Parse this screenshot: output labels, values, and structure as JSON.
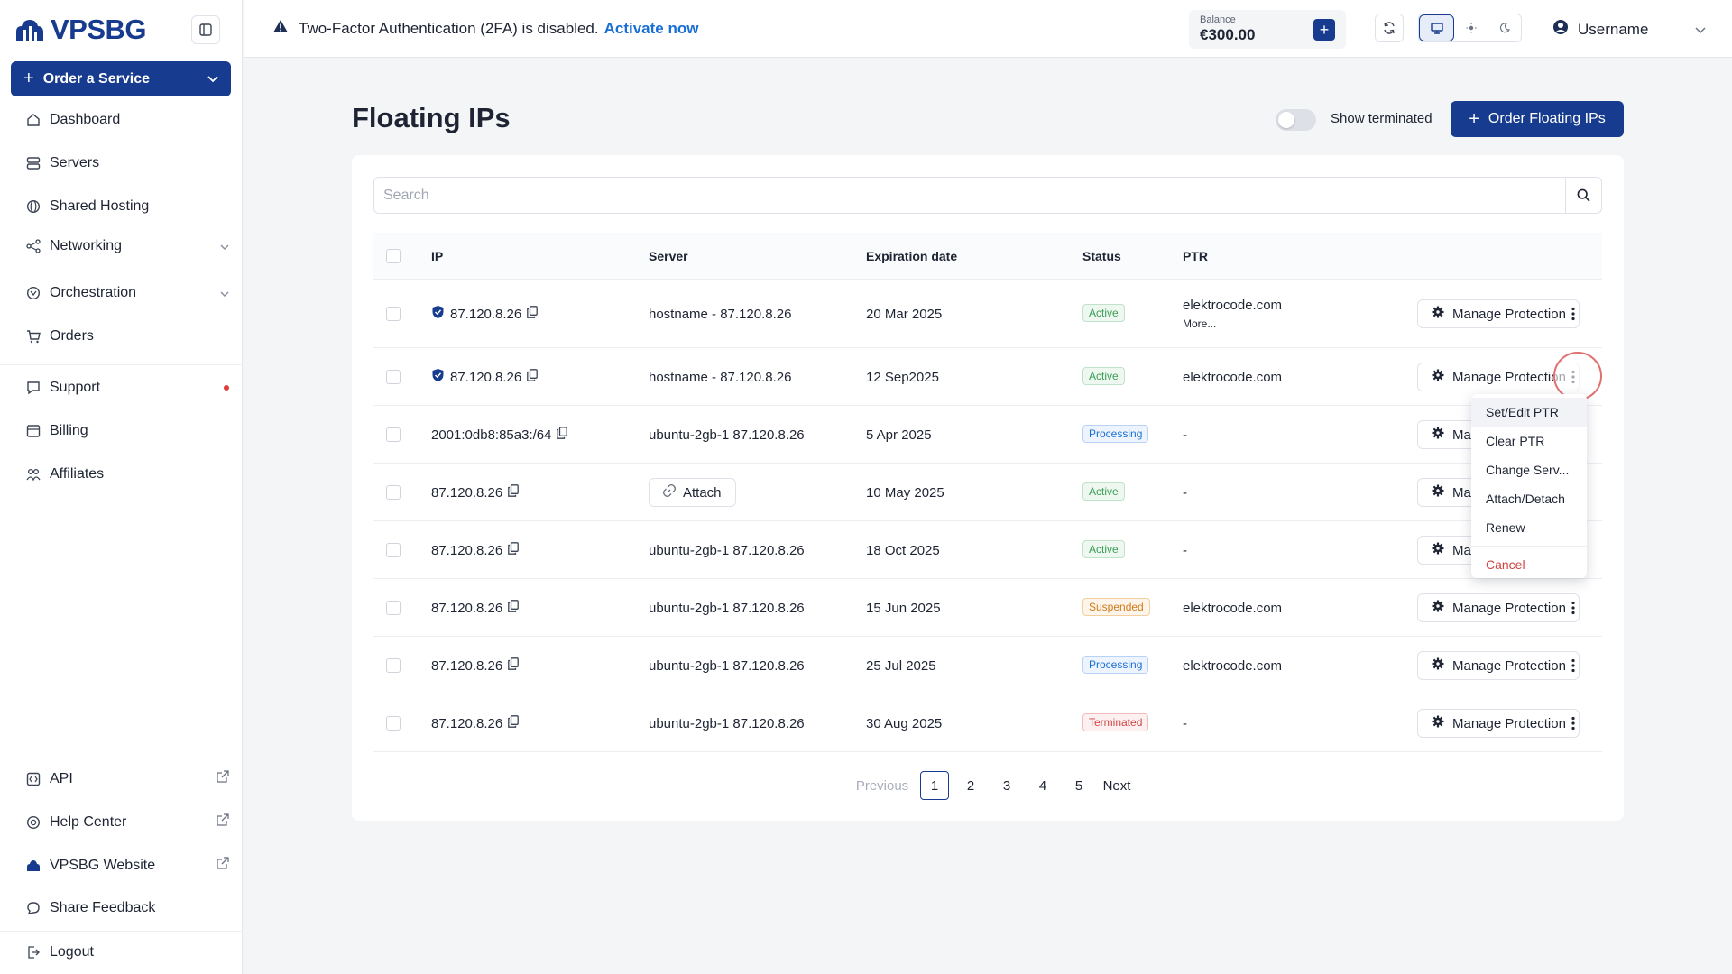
{
  "brand": {
    "name": "VPSBG"
  },
  "sidebar": {
    "order_button": "Order a Service",
    "items": [
      {
        "label": "Dashboard",
        "icon": "home-icon"
      },
      {
        "label": "Servers",
        "icon": "server-icon"
      },
      {
        "label": "Shared Hosting",
        "icon": "globe-icon"
      },
      {
        "label": "Networking",
        "icon": "network-icon",
        "expandable": true
      },
      {
        "label": "Orchestration",
        "icon": "orchestration-icon",
        "expandable": true
      },
      {
        "label": "Orders",
        "icon": "cart-icon"
      },
      {
        "label": "Support",
        "icon": "chat-icon",
        "notification": true
      },
      {
        "label": "Billing",
        "icon": "billing-icon"
      },
      {
        "label": "Affiliates",
        "icon": "affiliates-icon"
      }
    ],
    "bottom_items": [
      {
        "label": "API",
        "icon": "api-icon",
        "external": true
      },
      {
        "label": "Help Center",
        "icon": "help-icon",
        "external": true
      },
      {
        "label": "VPSBG Website",
        "icon": "cloud-icon",
        "external": true
      },
      {
        "label": "Share Feedback",
        "icon": "feedback-icon"
      },
      {
        "label": "Logout",
        "icon": "logout-icon"
      }
    ]
  },
  "topbar": {
    "alert_text": "Two-Factor Authentication (2FA) is disabled.",
    "alert_link": "Activate now",
    "balance_label": "Balance",
    "balance_value": "€300.00",
    "username": "Username"
  },
  "page": {
    "title": "Floating IPs",
    "toggle_label": "Show terminated",
    "toggle_on": false,
    "order_button": "Order Floating IPs",
    "search_placeholder": "Search"
  },
  "table": {
    "columns": [
      "IP",
      "Server",
      "Expiration date",
      "Status",
      "PTR"
    ],
    "manage_label": "Manage Protection",
    "manage_label_short": "Manage",
    "attach_label": "Attach",
    "more_label": "More...",
    "rows": [
      {
        "ip": "87.120.8.26",
        "protected": true,
        "server": "hostname - 87.120.8.26",
        "expiration": "20 Mar 2025",
        "status": "Active",
        "ptr": "elektrocode.com",
        "more": true
      },
      {
        "ip": "87.120.8.26",
        "protected": true,
        "server": "hostname - 87.120.8.26",
        "expiration": "12 Sep2025",
        "status": "Active",
        "ptr": "elektrocode.com"
      },
      {
        "ip": "2001:0db8:85a3:/64",
        "protected": false,
        "server": "ubuntu-2gb-1 87.120.8.26",
        "expiration": "5 Apr 2025",
        "status": "Processing",
        "ptr": "-"
      },
      {
        "ip": "87.120.8.26",
        "protected": false,
        "server": "",
        "attach": true,
        "expiration": "10 May 2025",
        "status": "Active",
        "ptr": "-"
      },
      {
        "ip": "87.120.8.26",
        "protected": false,
        "server": "ubuntu-2gb-1 87.120.8.26",
        "expiration": "18 Oct 2025",
        "status": "Active",
        "ptr": "-"
      },
      {
        "ip": "87.120.8.26",
        "protected": false,
        "server": "ubuntu-2gb-1 87.120.8.26",
        "expiration": "15 Jun 2025",
        "status": "Suspended",
        "ptr": "elektrocode.com"
      },
      {
        "ip": "87.120.8.26",
        "protected": false,
        "server": "ubuntu-2gb-1 87.120.8.26",
        "expiration": "25 Jul  2025",
        "status": "Processing",
        "ptr": "elektrocode.com"
      },
      {
        "ip": "87.120.8.26",
        "protected": false,
        "server": "ubuntu-2gb-1 87.120.8.26",
        "expiration": "30 Aug 2025",
        "status": "Terminated",
        "ptr": "-"
      }
    ]
  },
  "context_menu": {
    "items": [
      "Set/Edit PTR",
      "Clear PTR",
      "Change Serv...",
      "Attach/Detach",
      "Renew"
    ],
    "danger_item": "Cancel"
  },
  "pagination": {
    "previous": "Previous",
    "next": "Next",
    "pages": [
      "1",
      "2",
      "3",
      "4",
      "5"
    ],
    "current": "1"
  },
  "colors": {
    "brand": "#163b8f",
    "link": "#1a6fd6",
    "active": "#3a9d56",
    "processing": "#1a6fd6",
    "suspended": "#d07a1a",
    "terminated": "#d14343"
  }
}
